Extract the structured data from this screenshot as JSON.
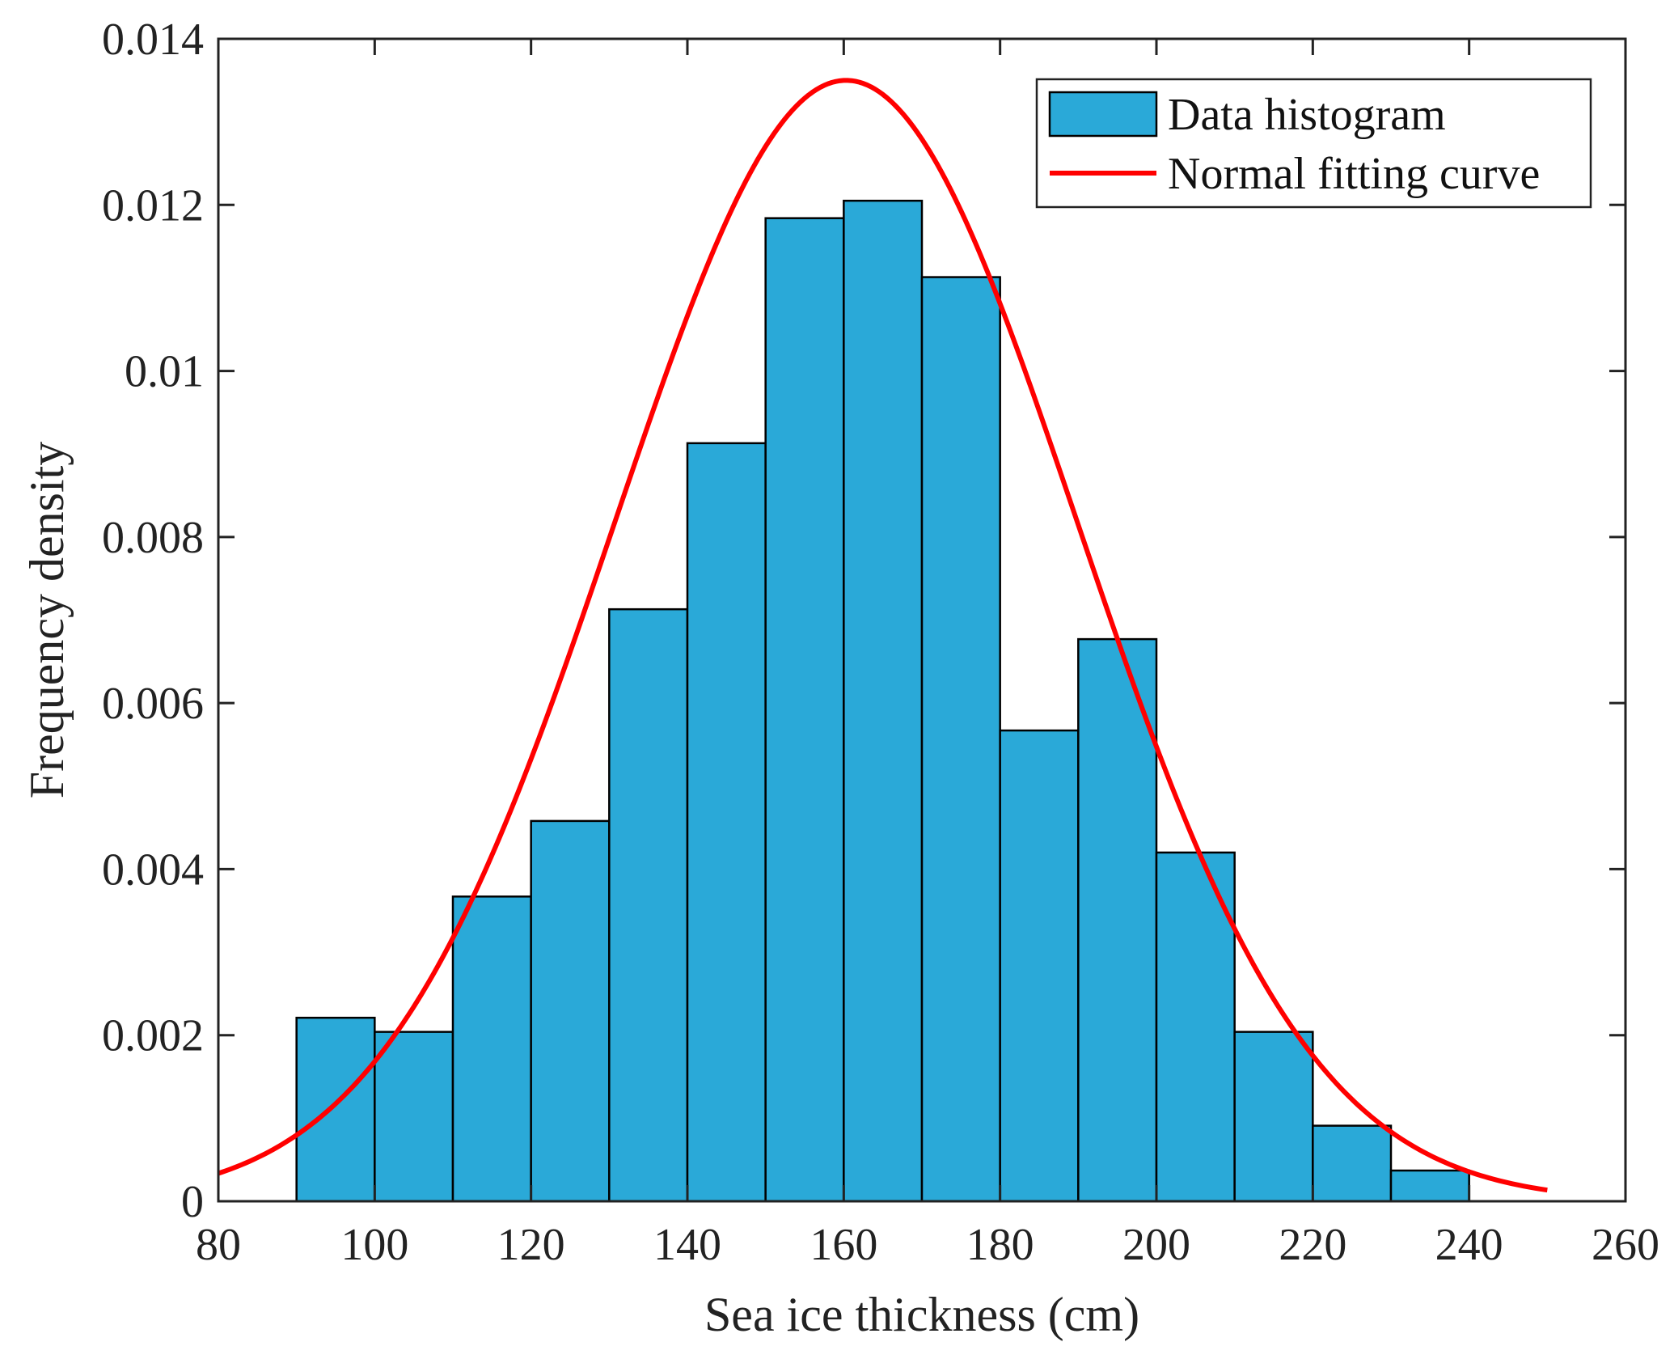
{
  "chart_data": {
    "type": "bar",
    "title": "",
    "xlabel": "Sea ice thickness (cm)",
    "ylabel": "Frequency density",
    "xlim": [
      80,
      260
    ],
    "ylim": [
      0,
      0.014
    ],
    "x_ticks": [
      "80",
      "100",
      "120",
      "140",
      "160",
      "180",
      "200",
      "220",
      "240",
      "260"
    ],
    "y_ticks": [
      "0",
      "0.002",
      "0.004",
      "0.006",
      "0.008",
      "0.01",
      "0.012",
      "0.014"
    ],
    "grid": false,
    "legend_position": "top-right",
    "colors": {
      "bar": "#2aa9d8",
      "curve": "#ff0000",
      "axis": "#222222"
    },
    "series": [
      {
        "name": "Data histogram",
        "kind": "histogram",
        "bins": [
          {
            "from": 90,
            "to": 100,
            "value": 0.00221
          },
          {
            "from": 100,
            "to": 110,
            "value": 0.00204
          },
          {
            "from": 110,
            "to": 120,
            "value": 0.00367
          },
          {
            "from": 120,
            "to": 130,
            "value": 0.00458
          },
          {
            "from": 130,
            "to": 140,
            "value": 0.00713
          },
          {
            "from": 140,
            "to": 150,
            "value": 0.00913
          },
          {
            "from": 150,
            "to": 160,
            "value": 0.01184
          },
          {
            "from": 160,
            "to": 170,
            "value": 0.01205
          },
          {
            "from": 170,
            "to": 180,
            "value": 0.01113
          },
          {
            "from": 180,
            "to": 190,
            "value": 0.00567
          },
          {
            "from": 190,
            "to": 200,
            "value": 0.00677
          },
          {
            "from": 200,
            "to": 210,
            "value": 0.0042
          },
          {
            "from": 210,
            "to": 220,
            "value": 0.00204
          },
          {
            "from": 220,
            "to": 230,
            "value": 0.00091
          },
          {
            "from": 230,
            "to": 240,
            "value": 0.00037
          }
        ]
      },
      {
        "name": "Normal fitting curve",
        "kind": "line",
        "x": [
          80,
          90,
          100,
          110,
          120,
          130,
          140,
          150,
          160,
          170,
          180,
          190,
          200,
          210,
          220,
          230,
          240,
          250
        ],
        "y": [
          0.00035,
          0.00084,
          0.00174,
          0.00316,
          0.00505,
          0.00714,
          0.00982,
          0.0123,
          0.0135,
          0.01287,
          0.0107,
          0.0076,
          0.00535,
          0.00327,
          0.00175,
          0.00082,
          0.00034,
          0.00013
        ]
      }
    ]
  }
}
